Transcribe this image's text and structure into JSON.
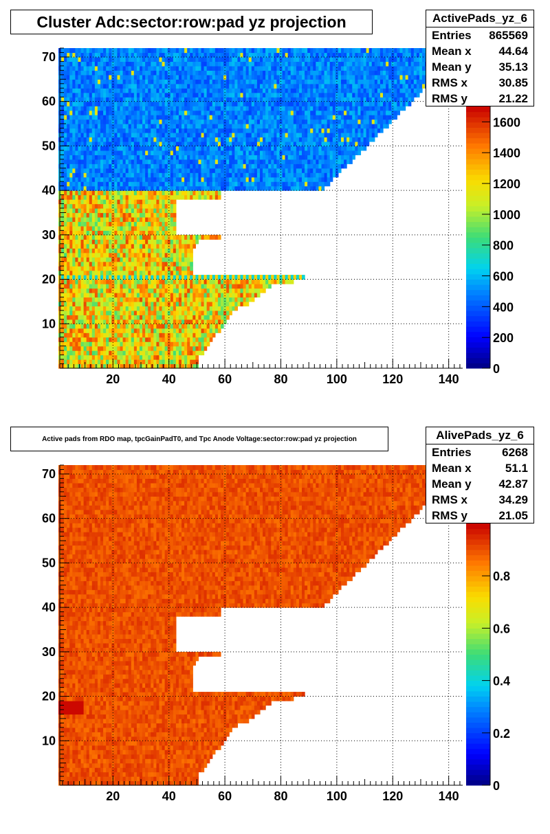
{
  "chart_data": [
    {
      "type": "heatmap",
      "title": "Cluster Adc:sector:row:pad yz projection",
      "xlabel": "",
      "ylabel": "",
      "xlim": [
        1,
        145
      ],
      "ylim": [
        0,
        72
      ],
      "x_ticks": [
        "20",
        "40",
        "60",
        "80",
        "100",
        "120",
        "140"
      ],
      "y_ticks": [
        "10",
        "20",
        "30",
        "40",
        "50",
        "60",
        "70"
      ],
      "zlim": [
        0,
        1700
      ],
      "z_ticks": [
        "0",
        "200",
        "400",
        "600",
        "800",
        "1000",
        "1200",
        "1400",
        "1600"
      ],
      "grid": true,
      "stats": {
        "name": "ActivePads_yz_6",
        "rows": [
          {
            "label": "Entries",
            "value": "865569"
          },
          {
            "label": "Mean x",
            "value": "44.64"
          },
          {
            "label": "Mean y",
            "value": "35.13"
          },
          {
            "label": "RMS x",
            "value": "30.85"
          },
          {
            "label": "RMS y",
            "value": "21.22"
          }
        ]
      },
      "regions": [
        {
          "rows": [
            41,
            72
          ],
          "pad_max_at_row41": 95,
          "pad_max_at_row72": 145,
          "level": 480
        },
        {
          "rows": [
            1,
            40
          ],
          "level": 1200
        },
        {
          "rows": [
            21,
            21
          ],
          "level": 650
        }
      ]
    },
    {
      "type": "heatmap",
      "title": "Active pads from RDO map, tpcGainPadT0,  and Tpc Anode Voltage:sector:row:pad yz projection",
      "xlabel": "",
      "ylabel": "",
      "xlim": [
        1,
        145
      ],
      "ylim": [
        0,
        72
      ],
      "x_ticks": [
        "20",
        "40",
        "60",
        "80",
        "100",
        "120",
        "140"
      ],
      "y_ticks": [
        "10",
        "20",
        "30",
        "40",
        "50",
        "60",
        "70"
      ],
      "zlim": [
        0,
        1.0
      ],
      "z_ticks": [
        "0",
        "0.2",
        "0.4",
        "0.6",
        "0.8"
      ],
      "grid": true,
      "stats": {
        "name": "AlivePads_yz_6",
        "rows": [
          {
            "label": "Entries",
            "value": "6268"
          },
          {
            "label": "Mean x",
            "value": "51.1"
          },
          {
            "label": "Mean y",
            "value": "42.87"
          },
          {
            "label": "RMS x",
            "value": "34.29"
          },
          {
            "label": "RMS y",
            "value": "21.05"
          }
        ]
      },
      "regions": [
        {
          "rows": [
            1,
            72
          ],
          "level": 0.92
        }
      ]
    }
  ]
}
